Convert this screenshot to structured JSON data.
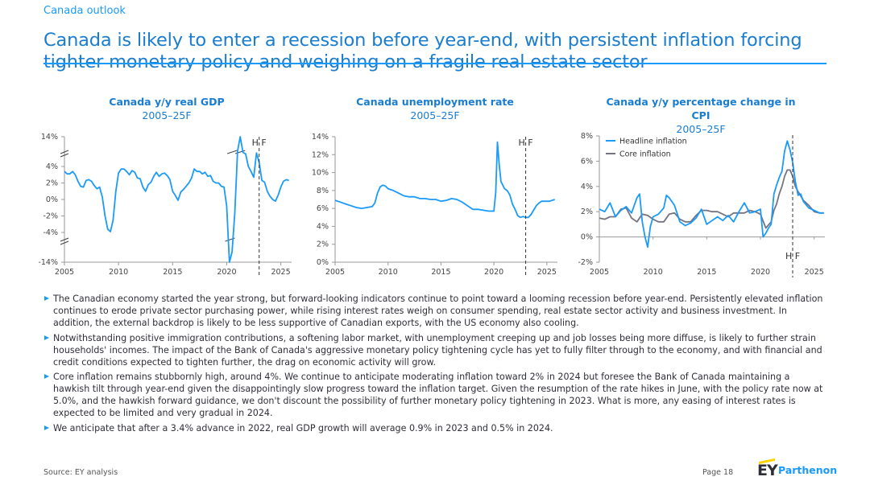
{
  "header": {
    "eyebrow": "Canada outlook",
    "title": "Canada is likely to enter a recession before year-end, with persistent inflation forcing tighter monetary policy and weighing on a fragile real estate sector"
  },
  "colors": {
    "accent": "#1a9afa",
    "title": "#1a7dd0",
    "series_primary": "#1a9afa",
    "series_secondary": "#747480"
  },
  "chart_data": [
    {
      "type": "line",
      "title": "Canada y/y real GDP",
      "subtitle": "2005–25F",
      "xlim": [
        2005,
        2026
      ],
      "ylim_main": [
        -4,
        4
      ],
      "ylim_display": [
        -14,
        14
      ],
      "y_ticks": [
        "14%",
        "4%",
        "2%",
        "0%",
        "-2%",
        "-4%",
        "-14%"
      ],
      "x_ticks": [
        "2005",
        "2010",
        "2015",
        "2020",
        "2025"
      ],
      "forecast_split": 2023,
      "split_label": "H F",
      "axis_break": true,
      "series": [
        {
          "name": "Real GDP",
          "x": [
            2005.0,
            2005.25,
            2005.5,
            2005.75,
            2006.0,
            2006.25,
            2006.5,
            2006.75,
            2007.0,
            2007.25,
            2007.5,
            2007.75,
            2008.0,
            2008.25,
            2008.5,
            2008.75,
            2009.0,
            2009.25,
            2009.5,
            2009.75,
            2010.0,
            2010.25,
            2010.5,
            2010.75,
            2011.0,
            2011.25,
            2011.5,
            2011.75,
            2012.0,
            2012.25,
            2012.5,
            2012.75,
            2013.0,
            2013.25,
            2013.5,
            2013.75,
            2014.0,
            2014.25,
            2014.5,
            2014.75,
            2015.0,
            2015.25,
            2015.5,
            2015.75,
            2016.0,
            2016.25,
            2016.5,
            2016.75,
            2017.0,
            2017.25,
            2017.5,
            2017.75,
            2018.0,
            2018.25,
            2018.5,
            2018.75,
            2019.0,
            2019.25,
            2019.5,
            2019.75,
            2020.0,
            2020.25,
            2020.5,
            2020.75,
            2021.0,
            2021.25,
            2021.5,
            2021.75,
            2022.0,
            2022.25,
            2022.5,
            2022.75,
            2023.0,
            2023.25,
            2023.5,
            2023.75,
            2024.0,
            2024.25,
            2024.5,
            2024.75,
            2025.0,
            2025.25,
            2025.5,
            2025.75
          ],
          "y": [
            3.4,
            3.1,
            3.1,
            3.4,
            3.0,
            2.2,
            1.6,
            1.5,
            2.3,
            2.4,
            2.2,
            1.7,
            1.3,
            1.5,
            0.3,
            -2.0,
            -3.6,
            -3.9,
            -2.5,
            1.0,
            3.2,
            3.7,
            3.7,
            3.4,
            3.0,
            3.5,
            3.3,
            2.6,
            2.5,
            1.5,
            1.0,
            1.8,
            2.1,
            2.8,
            3.3,
            2.8,
            3.1,
            3.2,
            2.9,
            2.4,
            1.0,
            0.5,
            -0.1,
            0.9,
            1.2,
            1.6,
            2.0,
            2.6,
            3.7,
            3.4,
            3.4,
            3.1,
            3.3,
            2.8,
            2.9,
            2.2,
            2.0,
            2.0,
            1.6,
            1.5,
            -0.8,
            -12.6,
            -5.3,
            -1.6,
            6.0,
            12.0,
            5.5,
            5.0,
            4.0,
            3.4,
            2.7,
            5.3,
            4.5,
            2.3,
            2.1,
            1.0,
            0.4,
            0.0,
            -0.2,
            0.5,
            1.5,
            2.2,
            2.4,
            2.3
          ]
        }
      ]
    },
    {
      "type": "line",
      "title": "Canada unemployment rate",
      "subtitle": "2005–25F",
      "xlim": [
        2005,
        2026
      ],
      "ylim": [
        0,
        14
      ],
      "y_ticks": [
        "14%",
        "12%",
        "10%",
        "8%",
        "6%",
        "4%",
        "2%",
        "0%"
      ],
      "x_ticks": [
        "2005",
        "2010",
        "2015",
        "2020",
        "2025"
      ],
      "forecast_split": 2023,
      "split_label": "H F",
      "series": [
        {
          "name": "Unemployment rate",
          "x": [
            2005.0,
            2005.5,
            2006.0,
            2006.5,
            2007.0,
            2007.5,
            2008.0,
            2008.5,
            2008.75,
            2009.0,
            2009.25,
            2009.5,
            2009.75,
            2010.0,
            2010.5,
            2011.0,
            2011.5,
            2012.0,
            2012.5,
            2013.0,
            2013.5,
            2014.0,
            2014.5,
            2015.0,
            2015.5,
            2016.0,
            2016.5,
            2017.0,
            2017.5,
            2018.0,
            2018.5,
            2019.0,
            2019.5,
            2020.0,
            2020.17,
            2020.33,
            2020.5,
            2020.67,
            2020.83,
            2021.0,
            2021.25,
            2021.5,
            2021.75,
            2022.0,
            2022.25,
            2022.5,
            2022.75,
            2023.0,
            2023.25,
            2023.5,
            2023.75,
            2024.0,
            2024.25,
            2024.5,
            2024.75,
            2025.0,
            2025.25,
            2025.5,
            2025.75
          ],
          "y": [
            6.9,
            6.7,
            6.5,
            6.3,
            6.1,
            6.0,
            6.1,
            6.2,
            6.6,
            7.7,
            8.4,
            8.6,
            8.5,
            8.2,
            8.0,
            7.7,
            7.4,
            7.3,
            7.3,
            7.1,
            7.1,
            7.0,
            7.0,
            6.8,
            6.9,
            7.1,
            7.0,
            6.7,
            6.3,
            5.9,
            5.9,
            5.8,
            5.7,
            5.7,
            7.8,
            13.4,
            10.9,
            9.0,
            8.6,
            8.2,
            8.0,
            7.5,
            6.5,
            5.9,
            5.2,
            5.0,
            5.1,
            5.0,
            5.0,
            5.3,
            5.8,
            6.3,
            6.6,
            6.8,
            6.8,
            6.8,
            6.8,
            6.9,
            7.0
          ]
        }
      ]
    },
    {
      "type": "line",
      "title": "Canada y/y percentage change in CPI",
      "subtitle": "2005–25F",
      "xlim": [
        2005,
        2026
      ],
      "ylim": [
        -2,
        8
      ],
      "y_ticks": [
        "8%",
        "6%",
        "4%",
        "2%",
        "0%",
        "-2%"
      ],
      "x_ticks": [
        "2005",
        "2010",
        "2015",
        "2020",
        "2025"
      ],
      "forecast_split": 2023,
      "split_label": "H F",
      "legend": {
        "position": "top-left",
        "entries": [
          "Headline inflation",
          "Core inflation"
        ]
      },
      "series": [
        {
          "name": "Headline inflation",
          "x": [
            2005.0,
            2005.5,
            2006.0,
            2006.5,
            2007.0,
            2007.5,
            2008.0,
            2008.5,
            2008.75,
            2009.0,
            2009.25,
            2009.5,
            2009.75,
            2010.0,
            2010.5,
            2011.0,
            2011.25,
            2011.5,
            2012.0,
            2012.5,
            2013.0,
            2013.5,
            2014.0,
            2014.5,
            2015.0,
            2015.5,
            2016.0,
            2016.5,
            2017.0,
            2017.5,
            2018.0,
            2018.5,
            2019.0,
            2019.5,
            2020.0,
            2020.25,
            2020.5,
            2020.75,
            2021.0,
            2021.25,
            2021.5,
            2021.75,
            2022.0,
            2022.25,
            2022.5,
            2022.75,
            2023.0,
            2023.25,
            2023.5,
            2023.75,
            2024.0,
            2024.5,
            2025.0,
            2025.5,
            2025.9
          ],
          "y": [
            2.2,
            2.0,
            2.7,
            1.6,
            2.1,
            2.4,
            1.9,
            3.1,
            3.4,
            1.2,
            0.0,
            -0.8,
            0.8,
            1.6,
            1.8,
            2.3,
            3.3,
            3.1,
            2.5,
            1.2,
            0.9,
            1.1,
            1.5,
            2.2,
            1.0,
            1.3,
            1.6,
            1.3,
            1.7,
            1.2,
            2.0,
            2.7,
            1.9,
            2.0,
            2.2,
            0.0,
            0.3,
            0.7,
            1.0,
            3.4,
            4.1,
            4.7,
            5.2,
            6.8,
            7.6,
            6.9,
            5.9,
            4.4,
            3.3,
            3.4,
            2.8,
            2.3,
            2.1,
            1.9,
            1.9
          ]
        },
        {
          "name": "Core inflation",
          "x": [
            2005.0,
            2005.5,
            2006.0,
            2006.5,
            2007.0,
            2007.5,
            2008.0,
            2008.5,
            2009.0,
            2009.5,
            2010.0,
            2010.5,
            2011.0,
            2011.5,
            2012.0,
            2012.5,
            2013.0,
            2013.5,
            2014.0,
            2014.5,
            2015.0,
            2015.5,
            2016.0,
            2016.5,
            2017.0,
            2017.5,
            2018.0,
            2018.5,
            2019.0,
            2019.5,
            2020.0,
            2020.5,
            2021.0,
            2021.25,
            2021.5,
            2021.75,
            2022.0,
            2022.25,
            2022.5,
            2022.75,
            2023.0,
            2023.25,
            2023.5,
            2024.0,
            2024.5,
            2025.0,
            2025.5,
            2025.9
          ],
          "y": [
            1.5,
            1.4,
            1.6,
            1.6,
            2.2,
            2.3,
            1.5,
            1.2,
            1.8,
            1.7,
            1.4,
            1.2,
            1.2,
            1.8,
            1.9,
            1.4,
            1.2,
            1.2,
            1.7,
            2.1,
            2.1,
            2.0,
            2.0,
            1.8,
            1.6,
            1.9,
            1.9,
            1.9,
            2.1,
            2.0,
            1.8,
            0.7,
            1.2,
            2.1,
            2.6,
            3.4,
            4.0,
            4.8,
            5.3,
            5.3,
            4.8,
            4.0,
            3.6,
            2.9,
            2.5,
            2.0,
            1.9,
            1.9
          ]
        }
      ]
    }
  ],
  "bullets": [
    "The Canadian economy started the year strong, but forward-looking indicators continue to point toward a looming recession before year-end. Persistently elevated inflation continues to erode private sector purchasing power, while rising interest rates weigh on consumer spending, real estate sector activity and business investment. In addition, the external backdrop is likely to be less supportive of Canadian exports, with the US economy also cooling.",
    "Notwithstanding positive immigration contributions, a softening labor market, with unemployment creeping up and job losses being more diffuse, is likely to further strain households' incomes. The impact of the Bank of Canada's aggressive monetary policy tightening cycle has yet to fully filter through to the economy, and with financial and credit conditions expected to tighten further, the drag on economic activity will grow.",
    "Core inflation remains stubbornly high, around 4%. We continue to anticipate moderating inflation toward 2% in 2024 but foresee the Bank of Canada maintaining a hawkish tilt through year-end given the disappointingly slow progress toward the inflation target. Given the resumption of the rate hikes in June, with the policy rate now at 5.0%, and the hawkish forward guidance, we don't discount the possibility of further monetary policy tightening in 2023. What is more, any easing of interest rates is expected to be limited and very gradual in 2024.",
    "We anticipate that after a 3.4% advance in 2022, real GDP growth will average 0.9% in 2023 and 0.5% in 2024."
  ],
  "footer": {
    "source": "Source: EY analysis",
    "page": "Page 18",
    "logo_mark": "EY",
    "logo_name": "Parthenon"
  }
}
